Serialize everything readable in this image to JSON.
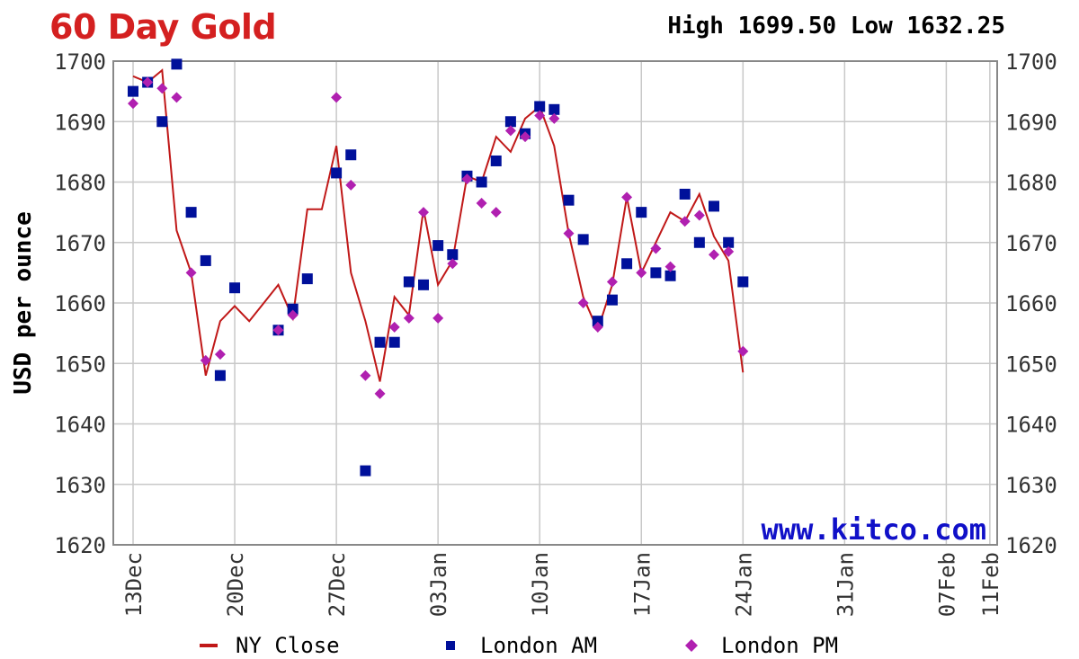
{
  "header": {
    "title": "60 Day Gold",
    "high_low": "High 1699.50 Low 1632.25"
  },
  "watermark": "www.kitco.com",
  "chart_data": {
    "type": "line",
    "title": "60 Day Gold",
    "subtitle": "High 1699.50 Low 1632.25",
    "ylabel": "USD per ounce",
    "xlabel": "",
    "ylim": [
      1620,
      1700
    ],
    "yticks": [
      1700,
      1690,
      1680,
      1670,
      1660,
      1650,
      1640,
      1630,
      1620
    ],
    "grid": true,
    "legend_position": "bottom",
    "x_tick_labels": [
      {
        "label": "13Dec",
        "day": 0
      },
      {
        "label": "20Dec",
        "day": 7
      },
      {
        "label": "27Dec",
        "day": 14
      },
      {
        "label": "03Jan",
        "day": 21
      },
      {
        "label": "10Jan",
        "day": 28
      },
      {
        "label": "17Jan",
        "day": 35
      },
      {
        "label": "24Jan",
        "day": 42
      },
      {
        "label": "31Jan",
        "day": 49
      },
      {
        "label": "07Feb",
        "day": 56
      },
      {
        "label": "11Feb",
        "day": 59
      }
    ],
    "series": [
      {
        "name": "NY Close",
        "kind": "line",
        "color": "#c01818",
        "points": [
          [
            0,
            1697.5
          ],
          [
            1,
            1696.5
          ],
          [
            2,
            1698.5
          ],
          [
            3,
            1672
          ],
          [
            4,
            1665
          ],
          [
            5,
            1648
          ],
          [
            6,
            1657
          ],
          [
            7,
            1659.5
          ],
          [
            8,
            1657
          ],
          [
            9,
            1660
          ],
          [
            10,
            1663
          ],
          [
            11,
            1657.5
          ],
          [
            12,
            1675.5
          ],
          [
            13,
            1675.5
          ],
          [
            14,
            1686
          ],
          [
            15,
            1665
          ],
          [
            16,
            1657
          ],
          [
            17,
            1647
          ],
          [
            18,
            1661
          ],
          [
            19,
            1658
          ],
          [
            20,
            1675.5
          ],
          [
            21,
            1663
          ],
          [
            22,
            1667
          ],
          [
            23,
            1681
          ],
          [
            24,
            1680
          ],
          [
            25,
            1687.5
          ],
          [
            26,
            1685
          ],
          [
            27,
            1690.5
          ],
          [
            28,
            1692.5
          ],
          [
            29,
            1686
          ],
          [
            30,
            1671.5
          ],
          [
            31,
            1661
          ],
          [
            32,
            1655.5
          ],
          [
            33,
            1663
          ],
          [
            34,
            1677.5
          ],
          [
            35,
            1665
          ],
          [
            36,
            1670
          ],
          [
            37,
            1675
          ],
          [
            38,
            1673.5
          ],
          [
            39,
            1678
          ],
          [
            40,
            1671
          ],
          [
            41,
            1667
          ],
          [
            42,
            1648.5
          ]
        ]
      },
      {
        "name": "London AM",
        "kind": "scatter",
        "marker": "square",
        "color": "#00109a",
        "points": [
          [
            0,
            1695
          ],
          [
            1,
            1696.5
          ],
          [
            2,
            1690
          ],
          [
            3,
            1699.5
          ],
          [
            4,
            1675
          ],
          [
            5,
            1667
          ],
          [
            6,
            1648
          ],
          [
            7,
            1662.5
          ],
          [
            10,
            1655.5
          ],
          [
            11,
            1659
          ],
          [
            12,
            1664
          ],
          [
            14,
            1681.5
          ],
          [
            15,
            1684.5
          ],
          [
            16,
            1632.25
          ],
          [
            17,
            1653.5
          ],
          [
            18,
            1653.5
          ],
          [
            19,
            1663.5
          ],
          [
            20,
            1663
          ],
          [
            21,
            1669.5
          ],
          [
            22,
            1668
          ],
          [
            23,
            1681
          ],
          [
            24,
            1680
          ],
          [
            25,
            1683.5
          ],
          [
            26,
            1690
          ],
          [
            27,
            1688
          ],
          [
            28,
            1692.5
          ],
          [
            29,
            1692
          ],
          [
            30,
            1677
          ],
          [
            31,
            1670.5
          ],
          [
            32,
            1657
          ],
          [
            33,
            1660.5
          ],
          [
            34,
            1666.5
          ],
          [
            35,
            1675
          ],
          [
            36,
            1665
          ],
          [
            37,
            1664.5
          ],
          [
            38,
            1678
          ],
          [
            39,
            1670
          ],
          [
            40,
            1676
          ],
          [
            41,
            1670
          ],
          [
            42,
            1663.5
          ]
        ]
      },
      {
        "name": "London PM",
        "kind": "scatter",
        "marker": "diamond",
        "color": "#b020b0",
        "points": [
          [
            0,
            1693
          ],
          [
            1,
            1696.5
          ],
          [
            2,
            1695.5
          ],
          [
            3,
            1694
          ],
          [
            4,
            1665
          ],
          [
            5,
            1650.5
          ],
          [
            6,
            1651.5
          ],
          [
            10,
            1655.5
          ],
          [
            11,
            1658
          ],
          [
            14,
            1694
          ],
          [
            15,
            1679.5
          ],
          [
            16,
            1648
          ],
          [
            17,
            1645
          ],
          [
            18,
            1656
          ],
          [
            19,
            1657.5
          ],
          [
            20,
            1675
          ],
          [
            21,
            1657.5
          ],
          [
            22,
            1666.5
          ],
          [
            23,
            1680.5
          ],
          [
            24,
            1676.5
          ],
          [
            25,
            1675
          ],
          [
            26,
            1688.5
          ],
          [
            27,
            1687.5
          ],
          [
            28,
            1691
          ],
          [
            29,
            1690.5
          ],
          [
            30,
            1671.5
          ],
          [
            31,
            1660
          ],
          [
            32,
            1656
          ],
          [
            33,
            1663.5
          ],
          [
            34,
            1677.5
          ],
          [
            35,
            1665
          ],
          [
            36,
            1669
          ],
          [
            37,
            1666
          ],
          [
            38,
            1673.5
          ],
          [
            39,
            1674.5
          ],
          [
            40,
            1668
          ],
          [
            41,
            1668.5
          ],
          [
            42,
            1652
          ]
        ]
      }
    ],
    "legend": [
      {
        "name": "NY Close",
        "marker": "line",
        "color": "#c01818"
      },
      {
        "name": "London AM",
        "marker": "square",
        "color": "#00109a"
      },
      {
        "name": "London PM",
        "marker": "diamond",
        "color": "#b020b0"
      }
    ]
  }
}
